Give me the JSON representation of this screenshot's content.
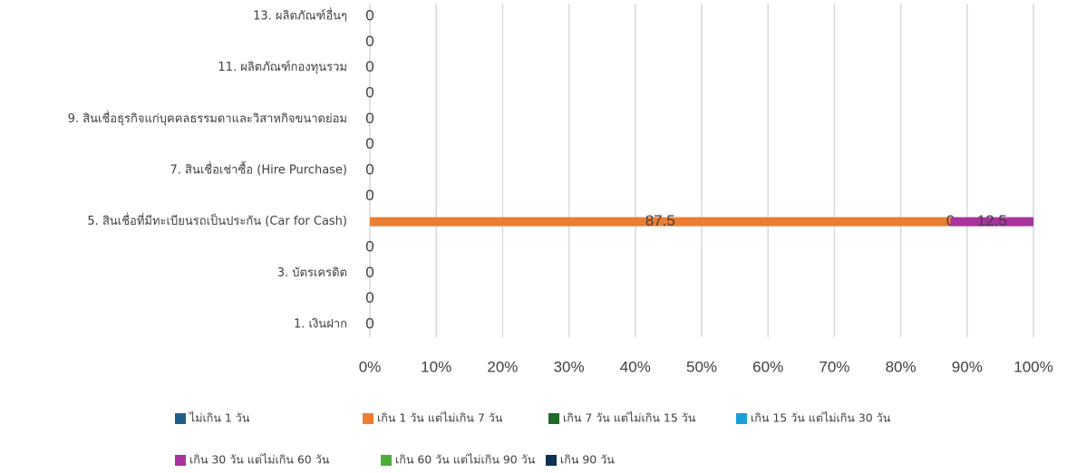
{
  "chart_data": {
    "type": "bar",
    "orientation": "horizontal",
    "stacked": "percent",
    "categories": [
      "1. เงินฝาก",
      null,
      "3. บัตรเครดิต",
      null,
      "5. สินเชื่อที่มีทะเบียนรถเป็นประกัน (Car for Cash)",
      null,
      "7. สินเชื่อเช่าซื้อ (Hire Purchase)",
      null,
      "9. สินเชื่อธุรกิจแก่บุคคลธรรมดาและวิสาหกิจขนาดย่อม",
      null,
      "11. ผลิตภัณฑ์กองทุนรวม",
      null,
      "13. ผลิตภัณฑ์อื่นๆ"
    ],
    "series": [
      {
        "name": "ไม่เกิน 1 วัน",
        "color": "#1f5f8b",
        "values": [
          0,
          0,
          0,
          0,
          null,
          0,
          0,
          0,
          0,
          0,
          0,
          0,
          0
        ]
      },
      {
        "name": "เกิน 1 วัน แต่ไม่เกิน 7 วัน",
        "color": "#ed7d31",
        "values": [
          null,
          null,
          null,
          null,
          87.5,
          null,
          null,
          null,
          null,
          null,
          null,
          null,
          null
        ]
      },
      {
        "name": "เกิน 7 วัน แต่ไม่เกิน 15 วัน",
        "color": "#1e6b2a",
        "values": [
          null,
          null,
          null,
          null,
          null,
          null,
          null,
          null,
          null,
          null,
          null,
          null,
          null
        ]
      },
      {
        "name": "เกิน 15 วัน แต่ไม่เกิน 30 วัน",
        "color": "#1a9fd6",
        "values": [
          null,
          null,
          null,
          null,
          0,
          null,
          null,
          null,
          null,
          null,
          null,
          null,
          null
        ]
      },
      {
        "name": "เกิน 30 วัน แต่ไม่เกิน 60 วัน",
        "color": "#a9329d",
        "values": [
          null,
          null,
          null,
          null,
          12.5,
          null,
          null,
          null,
          null,
          null,
          null,
          null,
          null
        ]
      },
      {
        "name": "เกิน 60 วัน แต่ไม่เกิน 90 วัน",
        "color": "#4caf3a",
        "values": [
          null,
          null,
          null,
          null,
          null,
          null,
          null,
          null,
          null,
          null,
          null,
          null,
          null
        ]
      },
      {
        "name": "เกิน 90 วัน",
        "color": "#0d3150",
        "values": [
          null,
          null,
          null,
          null,
          null,
          null,
          null,
          null,
          null,
          null,
          null,
          null,
          null
        ]
      }
    ],
    "xlim": [
      0,
      100
    ],
    "xticks": [
      {
        "value": 0,
        "label": "0%"
      },
      {
        "value": 10,
        "label": "10%"
      },
      {
        "value": 20,
        "label": "20%"
      },
      {
        "value": 30,
        "label": "30%"
      },
      {
        "value": 40,
        "label": "40%"
      },
      {
        "value": 50,
        "label": "50%"
      },
      {
        "value": 60,
        "label": "60%"
      },
      {
        "value": 70,
        "label": "70%"
      },
      {
        "value": 80,
        "label": "80%"
      },
      {
        "value": 90,
        "label": "90%"
      },
      {
        "value": 100,
        "label": "100%"
      }
    ],
    "grid": true,
    "legend": "bottom"
  }
}
